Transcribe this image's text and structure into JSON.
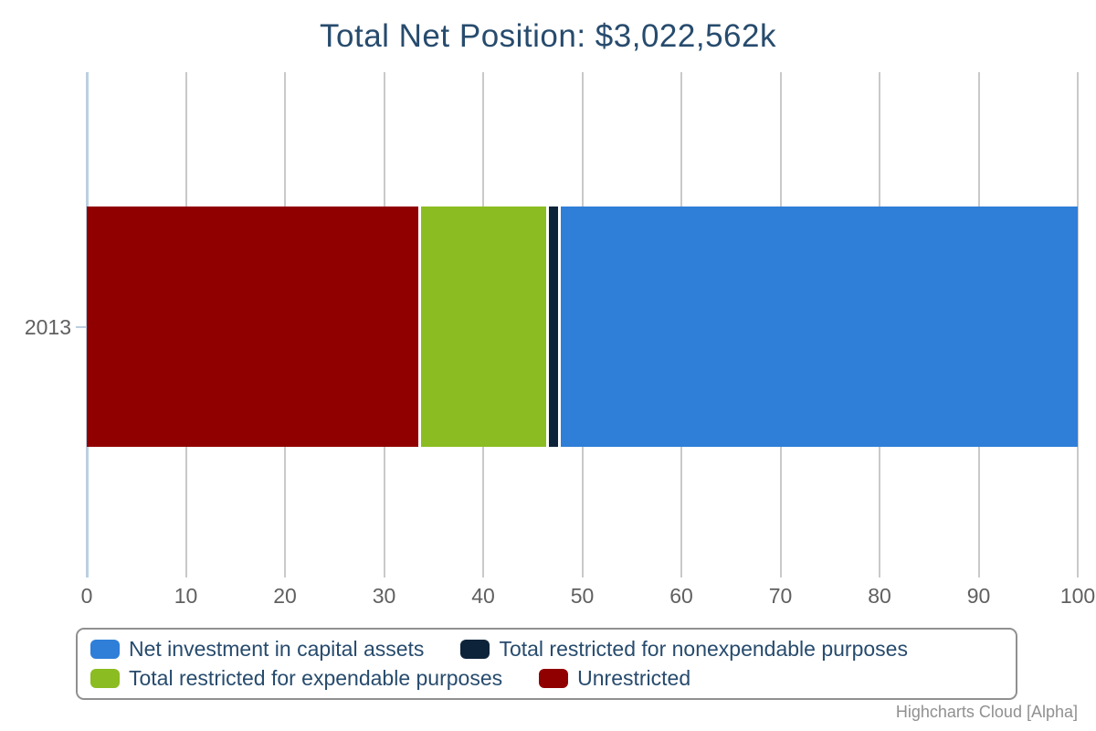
{
  "credits": "Highcharts Cloud [Alpha]",
  "chart_data": {
    "type": "bar",
    "stacked": true,
    "inverted": true,
    "title": "Total Net Position: $3,022,562k",
    "categories": [
      "2013"
    ],
    "series": [
      {
        "name": "Net investment in capital assets",
        "color": "#2f7ed8",
        "values": [
          52.3
        ]
      },
      {
        "name": "Total restricted for nonexpendable purposes",
        "color": "#0d233a",
        "values": [
          1.2
        ]
      },
      {
        "name": "Total restricted for expendable purposes",
        "color": "#8bbc21",
        "values": [
          12.9
        ]
      },
      {
        "name": "Unrestricted",
        "color": "#910000",
        "values": [
          33.6
        ]
      }
    ],
    "stack_order_left_to_right": [
      "Unrestricted",
      "Total restricted for expendable purposes",
      "Total restricted for nonexpendable purposes",
      "Net investment in capital assets"
    ],
    "xlabel": "",
    "ylabel": "",
    "xlim": [
      0,
      100
    ],
    "x_ticks": [
      0,
      10,
      20,
      30,
      40,
      50,
      60,
      70,
      80,
      90,
      100
    ],
    "grid": true,
    "legend_position": "bottom",
    "colors": {
      "title_text": "#274b6d",
      "axis_label_text": "#606060",
      "gridline": "#c9c9c9",
      "axis_line": "#bccfe0",
      "legend_border": "#909090",
      "credits_text": "#909090"
    }
  }
}
